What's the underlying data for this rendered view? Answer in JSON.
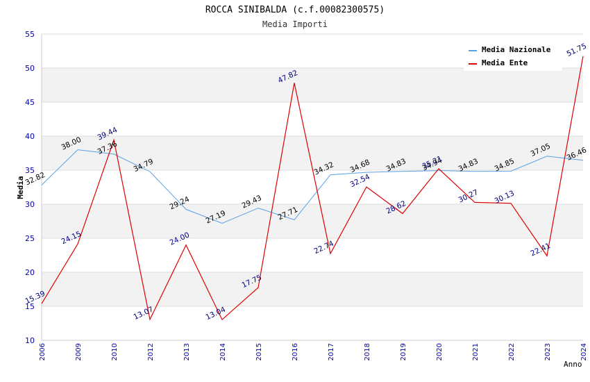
{
  "chart_data": {
    "type": "line",
    "title": "ROCCA SINIBALDA (c.f.00082300575)",
    "subtitle": "Media Importi",
    "xlabel": "Anno",
    "ylabel": "Media",
    "ylim": [
      10,
      55
    ],
    "yticks": [
      10,
      15,
      20,
      25,
      30,
      35,
      40,
      45,
      50,
      55
    ],
    "categories": [
      "2006",
      "2009",
      "2010",
      "2012",
      "2013",
      "2014",
      "2015",
      "2016",
      "2017",
      "2018",
      "2019",
      "2020",
      "2021",
      "2022",
      "2023",
      "2024"
    ],
    "series": [
      {
        "name": "Media Nazionale",
        "color": "#5aa0e6",
        "values": [
          32.82,
          38.0,
          37.36,
          34.79,
          29.24,
          27.19,
          29.43,
          27.71,
          34.32,
          34.68,
          34.83,
          34.94,
          34.83,
          34.85,
          37.05,
          36.46
        ],
        "labels": [
          "32.82",
          "38.00",
          "37.36",
          "34.79",
          "29.24",
          "27.19",
          "29.43",
          "27.71",
          "34.32",
          "34.68",
          "34.83",
          "34.94",
          "34.83",
          "34.85",
          "37.05",
          "36.46"
        ]
      },
      {
        "name": "Media Ente",
        "color": "#dd0000",
        "values": [
          15.39,
          24.15,
          39.44,
          13.07,
          24.0,
          13.04,
          17.75,
          47.82,
          22.74,
          32.54,
          28.62,
          35.21,
          30.27,
          30.13,
          22.41,
          51.75
        ],
        "labels": [
          "15.39",
          "24.15",
          "39.44",
          "13.07",
          "24.00",
          "13.04",
          "17.75",
          "47.82",
          "22.74",
          "32.54",
          "28.62",
          "35.21",
          "30.27",
          "30.13",
          "22.41",
          "51.75"
        ]
      }
    ],
    "grid": true,
    "legend_position": "top-right"
  }
}
